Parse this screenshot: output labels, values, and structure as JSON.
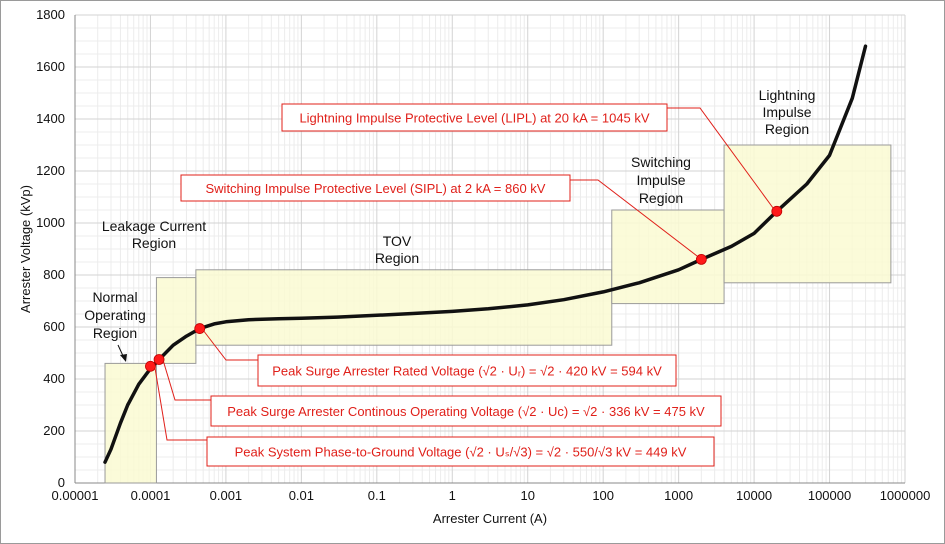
{
  "chart_data": {
    "type": "line",
    "xlabel": "Arrester Current (A)",
    "ylabel": "Arrester Voltage  (kVp)",
    "x_scale": "log",
    "xlim": [
      1e-05,
      1000000
    ],
    "ylim": [
      0,
      1800
    ],
    "x_ticks": [
      "0.00001",
      "0.0001",
      "0.001",
      "0.01",
      "0.1",
      "1",
      "10",
      "100",
      "1000",
      "10000",
      "100000",
      "1000000"
    ],
    "y_ticks": [
      "0",
      "200",
      "400",
      "600",
      "800",
      "1000",
      "1200",
      "1400",
      "1600",
      "1800"
    ],
    "grid": true,
    "series": [
      {
        "color": "#111111",
        "x": [
          2.5e-05,
          3e-05,
          4e-05,
          5e-05,
          7e-05,
          0.0001,
          0.00013,
          0.0002,
          0.0003,
          0.00045,
          0.0007,
          0.001,
          0.002,
          0.005,
          0.01,
          0.03,
          0.1,
          0.3,
          1,
          3,
          10,
          30,
          100,
          300,
          1000,
          2000,
          5000,
          10000,
          20000,
          50000,
          100000,
          200000,
          300000
        ],
        "y": [
          80,
          130,
          230,
          300,
          380,
          440,
          475,
          530,
          565,
          594,
          612,
          620,
          628,
          632,
          634,
          638,
          645,
          652,
          660,
          670,
          685,
          705,
          735,
          770,
          820,
          860,
          910,
          960,
          1045,
          1150,
          1260,
          1480,
          1680
        ]
      }
    ],
    "regions": [
      {
        "label": "Normal Operating Region",
        "x0": 2.5e-05,
        "x1": 0.00012,
        "y0": 0,
        "y1": 460
      },
      {
        "label": "Leakage Current Region",
        "x0": 0.00012,
        "x1": 0.0004,
        "y0": 460,
        "y1": 790
      },
      {
        "label": "TOV Region",
        "x0": 0.0004,
        "x1": 130,
        "y0": 530,
        "y1": 820
      },
      {
        "label": "Switching Impulse Region",
        "x0": 130,
        "x1": 4000,
        "y0": 690,
        "y1": 1050
      },
      {
        "label": "Lightning Impulse Region",
        "x0": 4000,
        "x1": 650000,
        "y0": 770,
        "y1": 1300
      }
    ],
    "region_labels": {
      "normal": [
        "Normal",
        "Operating",
        "Region"
      ],
      "leakage": [
        "Leakage Current",
        "Region"
      ],
      "tov": [
        "TOV",
        "Region"
      ],
      "switching": [
        "Switching",
        "Impulse",
        "Region"
      ],
      "lightning": [
        "Lightning",
        "Impulse",
        "Region"
      ]
    },
    "points": [
      {
        "x": 0.0001,
        "y": 449,
        "color": "#ff1a1a"
      },
      {
        "x": 0.00013,
        "y": 475,
        "color": "#ff1a1a"
      },
      {
        "x": 0.00045,
        "y": 594,
        "color": "#ff1a1a"
      },
      {
        "x": 2000,
        "y": 860,
        "color": "#ff1a1a"
      },
      {
        "x": 20000,
        "y": 1045,
        "color": "#ff1a1a"
      }
    ],
    "annotations": [
      {
        "text": "Lightning Impulse Protective Level (LIPL) at 20 kA = 1045 kV"
      },
      {
        "text": "Switching Impulse Protective Level (SIPL) at 2 kA = 860 kV"
      },
      {
        "text": "Peak Surge Arrester Rated Voltage (√2 · Uᵣ) = √2 · 420 kV = 594 kV"
      },
      {
        "text": "Peak Surge Arrester Continous Operating Voltage (√2 · Uᴄ) = √2 · 336 kV = 475 kV"
      },
      {
        "text": "Peak System Phase-to-Ground Voltage (√2 ·  Uₛ/√3) = √2 · 550/√3 kV = 449 kV"
      }
    ]
  },
  "colors": {
    "region_fill": "#fafad2",
    "region_stroke": "#9a9a9a",
    "callout": "#e0201a",
    "curve": "#111111"
  }
}
